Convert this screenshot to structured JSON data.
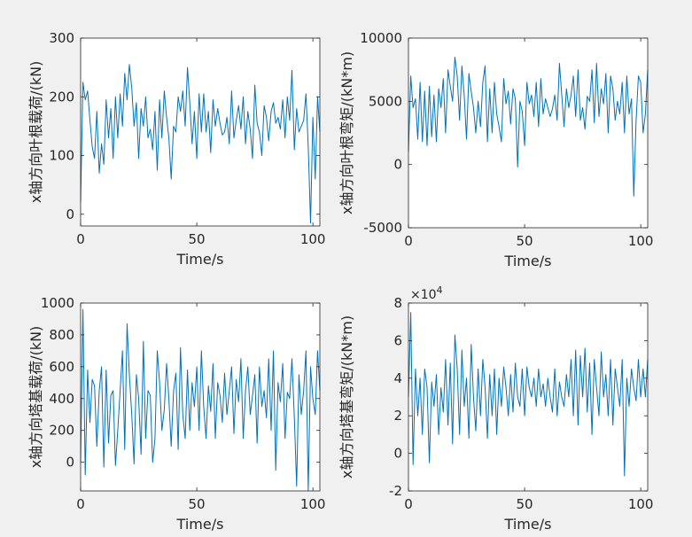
{
  "figure": {
    "background": "#f0f0f0",
    "line_color": "#0072bd"
  },
  "chart_data": [
    {
      "type": "line",
      "title": "",
      "xlabel": "Time/s",
      "ylabel": "x轴方向叶根载荷/(kN)",
      "xlim": [
        0,
        103
      ],
      "ylim": [
        -20,
        300
      ],
      "xticks": [
        0,
        50,
        100
      ],
      "yticks": [
        0,
        100,
        200,
        300
      ],
      "ytick_labels": [
        "0",
        "100",
        "200",
        "300"
      ],
      "multiplier": "",
      "series": [
        {
          "name": "x轴方向叶根载荷",
          "x": [
            0,
            1,
            2,
            3,
            4,
            5,
            6,
            7,
            8,
            9,
            10,
            11,
            12,
            13,
            14,
            15,
            16,
            17,
            18,
            19,
            20,
            21,
            22,
            23,
            24,
            25,
            26,
            27,
            28,
            29,
            30,
            31,
            32,
            33,
            34,
            35,
            36,
            37,
            38,
            39,
            40,
            41,
            42,
            43,
            44,
            45,
            46,
            47,
            48,
            49,
            50,
            51,
            52,
            53,
            54,
            55,
            56,
            57,
            58,
            59,
            60,
            61,
            62,
            63,
            64,
            65,
            66,
            67,
            68,
            69,
            70,
            71,
            72,
            73,
            74,
            75,
            76,
            77,
            78,
            79,
            80,
            81,
            82,
            83,
            84,
            85,
            86,
            87,
            88,
            89,
            90,
            91,
            92,
            93,
            94,
            95,
            96,
            97,
            98,
            99,
            100,
            101,
            102,
            103
          ],
          "y": [
            20,
            225,
            195,
            210,
            160,
            115,
            95,
            175,
            70,
            120,
            85,
            195,
            130,
            180,
            95,
            200,
            130,
            205,
            150,
            240,
            195,
            255,
            215,
            150,
            190,
            95,
            180,
            150,
            200,
            130,
            145,
            110,
            175,
            75,
            195,
            130,
            210,
            165,
            130,
            60,
            150,
            140,
            200,
            175,
            210,
            150,
            250,
            190,
            120,
            175,
            95,
            205,
            140,
            205,
            140,
            175,
            105,
            195,
            150,
            180,
            155,
            135,
            140,
            165,
            120,
            210,
            130,
            160,
            185,
            145,
            200,
            120,
            175,
            145,
            95,
            220,
            155,
            140,
            100,
            185,
            165,
            125,
            175,
            190,
            155,
            165,
            145,
            195,
            130,
            200,
            160,
            245,
            110,
            180,
            140,
            150,
            160,
            205,
            115,
            -15,
            165,
            60,
            200,
            140
          ]
        }
      ]
    },
    {
      "type": "line",
      "title": "",
      "xlabel": "Time/s",
      "ylabel": "x轴方向叶根弯矩/(kN*m)",
      "xlim": [
        0,
        103
      ],
      "ylim": [
        -5000,
        10000
      ],
      "xticks": [
        0,
        50,
        100
      ],
      "yticks": [
        -5000,
        0,
        5000,
        10000
      ],
      "ytick_labels": [
        "-5000",
        "0",
        "5000",
        "10000"
      ],
      "multiplier": "",
      "series": [
        {
          "name": "x轴方向叶根弯矩",
          "x": [
            0,
            1,
            2,
            3,
            4,
            5,
            6,
            7,
            8,
            9,
            10,
            11,
            12,
            13,
            14,
            15,
            16,
            17,
            18,
            19,
            20,
            21,
            22,
            23,
            24,
            25,
            26,
            27,
            28,
            29,
            30,
            31,
            32,
            33,
            34,
            35,
            36,
            37,
            38,
            39,
            40,
            41,
            42,
            43,
            44,
            45,
            46,
            47,
            48,
            49,
            50,
            51,
            52,
            53,
            54,
            55,
            56,
            57,
            58,
            59,
            60,
            61,
            62,
            63,
            64,
            65,
            66,
            67,
            68,
            69,
            70,
            71,
            72,
            73,
            74,
            75,
            76,
            77,
            78,
            79,
            80,
            81,
            82,
            83,
            84,
            85,
            86,
            87,
            88,
            89,
            90,
            91,
            92,
            93,
            94,
            95,
            96,
            97,
            98,
            99,
            100,
            101,
            102,
            103
          ],
          "y": [
            1000,
            7000,
            4500,
            5200,
            2000,
            6500,
            1800,
            5800,
            1500,
            6200,
            2200,
            5500,
            1800,
            6000,
            4500,
            6800,
            2500,
            7500,
            6200,
            5000,
            8500,
            7000,
            3500,
            7800,
            5500,
            2000,
            7200,
            5800,
            4500,
            2500,
            5000,
            3000,
            6500,
            7800,
            1800,
            6000,
            2500,
            6500,
            4000,
            3000,
            1800,
            6800,
            4800,
            5800,
            3200,
            6000,
            5200,
            -200,
            5000,
            4200,
            1500,
            6500,
            4800,
            5500,
            3800,
            6500,
            3000,
            6800,
            4000,
            5200,
            4500,
            3800,
            4400,
            5500,
            3500,
            8000,
            5500,
            3000,
            6000,
            4500,
            5500,
            7000,
            3800,
            7500,
            3500,
            4500,
            2800,
            5400,
            5000,
            7500,
            3300,
            8000,
            3800,
            6000,
            4800,
            7200,
            2500,
            7000,
            6000,
            3500,
            5000,
            4000,
            6500,
            2500,
            7000,
            4000,
            5200,
            -2500,
            3500,
            7000,
            6500,
            2500,
            4000,
            7500
          ]
        }
      ]
    },
    {
      "type": "line",
      "title": "",
      "xlabel": "Time/s",
      "ylabel": "x轴方向塔基载荷/(kN)",
      "xlim": [
        0,
        103
      ],
      "ylim": [
        -180,
        1000
      ],
      "xticks": [
        0,
        50,
        100
      ],
      "yticks": [
        0,
        200,
        400,
        600,
        800,
        1000
      ],
      "ytick_labels": [
        "0",
        "200",
        "400",
        "600",
        "800",
        "1000"
      ],
      "multiplier": "",
      "series": [
        {
          "name": "x轴方向塔基载荷",
          "x": [
            0,
            1,
            2,
            3,
            4,
            5,
            6,
            7,
            8,
            9,
            10,
            11,
            12,
            13,
            14,
            15,
            16,
            17,
            18,
            19,
            20,
            21,
            22,
            23,
            24,
            25,
            26,
            27,
            28,
            29,
            30,
            31,
            32,
            33,
            34,
            35,
            36,
            37,
            38,
            39,
            40,
            41,
            42,
            43,
            44,
            45,
            46,
            47,
            48,
            49,
            50,
            51,
            52,
            53,
            54,
            55,
            56,
            57,
            58,
            59,
            60,
            61,
            62,
            63,
            64,
            65,
            66,
            67,
            68,
            69,
            70,
            71,
            72,
            73,
            74,
            75,
            76,
            77,
            78,
            79,
            80,
            81,
            82,
            83,
            84,
            85,
            86,
            87,
            88,
            89,
            90,
            91,
            92,
            93,
            94,
            95,
            96,
            97,
            98,
            99,
            100,
            101,
            102,
            103
          ],
          "y": [
            0,
            960,
            -80,
            580,
            250,
            520,
            480,
            100,
            450,
            600,
            -30,
            580,
            120,
            420,
            450,
            -20,
            200,
            450,
            700,
            80,
            870,
            550,
            300,
            -10,
            550,
            400,
            50,
            760,
            150,
            450,
            420,
            0,
            150,
            700,
            500,
            200,
            330,
            620,
            400,
            100,
            450,
            560,
            80,
            720,
            300,
            150,
            580,
            200,
            500,
            350,
            600,
            200,
            700,
            350,
            150,
            480,
            320,
            620,
            150,
            500,
            420,
            250,
            560,
            300,
            450,
            600,
            180,
            520,
            380,
            650,
            150,
            450,
            600,
            300,
            420,
            550,
            120,
            600,
            350,
            450,
            280,
            650,
            200,
            700,
            -50,
            500,
            380,
            620,
            150,
            440,
            400,
            650,
            280,
            -150,
            550,
            300,
            450,
            700,
            -180,
            600,
            400,
            300,
            700,
            450
          ]
        }
      ]
    },
    {
      "type": "line",
      "title": "",
      "xlabel": "Time/s",
      "ylabel": "x轴方向塔基弯矩/(kN*m)",
      "xlim": [
        0,
        103
      ],
      "ylim": [
        -2,
        8
      ],
      "xticks": [
        0,
        50,
        100
      ],
      "yticks": [
        -2,
        0,
        2,
        4,
        6,
        8
      ],
      "ytick_labels": [
        "-2",
        "0",
        "2",
        "4",
        "6",
        "8"
      ],
      "multiplier": "×10^4",
      "multiplier_base": "×10",
      "multiplier_exp": "4",
      "series": [
        {
          "name": "x轴方向塔基弯矩",
          "x": [
            0,
            1,
            2,
            3,
            4,
            5,
            6,
            7,
            8,
            9,
            10,
            11,
            12,
            13,
            14,
            15,
            16,
            17,
            18,
            19,
            20,
            21,
            22,
            23,
            24,
            25,
            26,
            27,
            28,
            29,
            30,
            31,
            32,
            33,
            34,
            35,
            36,
            37,
            38,
            39,
            40,
            41,
            42,
            43,
            44,
            45,
            46,
            47,
            48,
            49,
            50,
            51,
            52,
            53,
            54,
            55,
            56,
            57,
            58,
            59,
            60,
            61,
            62,
            63,
            64,
            65,
            66,
            67,
            68,
            69,
            70,
            71,
            72,
            73,
            74,
            75,
            76,
            77,
            78,
            79,
            80,
            81,
            82,
            83,
            84,
            85,
            86,
            87,
            88,
            89,
            90,
            91,
            92,
            93,
            94,
            95,
            96,
            97,
            98,
            99,
            100,
            101,
            102,
            103
          ],
          "y": [
            3.0,
            7.5,
            -0.6,
            4.5,
            2.0,
            4.0,
            1.0,
            4.5,
            3.5,
            -0.5,
            3.8,
            2.5,
            4.2,
            1.0,
            3.5,
            2.2,
            5.0,
            1.5,
            4.8,
            0.5,
            6.3,
            4.5,
            1.0,
            5.5,
            2.5,
            4.0,
            0.8,
            5.8,
            3.0,
            1.2,
            4.5,
            2.0,
            5.0,
            3.5,
            0.8,
            4.2,
            2.0,
            4.5,
            1.0,
            4.0,
            2.5,
            4.6,
            3.5,
            2.0,
            4.2,
            2.2,
            4.8,
            3.0,
            2.5,
            4.5,
            2.0,
            4.6,
            3.5,
            3.0,
            4.0,
            2.5,
            4.5,
            3.0,
            3.7,
            2.5,
            4.0,
            3.0,
            2.2,
            4.5,
            2.0,
            3.8,
            3.0,
            2.5,
            4.2,
            3.0,
            5.0,
            2.0,
            5.5,
            1.5,
            5.2,
            3.0,
            5.6,
            2.2,
            4.8,
            1.0,
            5.0,
            3.5,
            2.0,
            5.4,
            3.0,
            4.2,
            2.0,
            5.0,
            1.5,
            4.5,
            3.5,
            2.5,
            5.0,
            -1.2,
            4.0,
            2.5,
            4.5,
            3.5,
            2.8,
            5.0,
            3.0,
            4.5,
            3.0,
            5.0
          ]
        }
      ]
    }
  ]
}
